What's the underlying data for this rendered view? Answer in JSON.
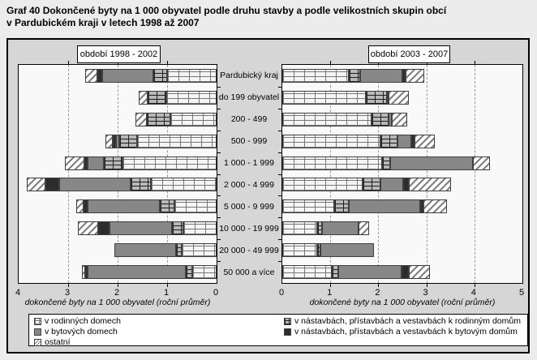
{
  "title_line1": "Graf 40 Dokončené byty na 1 000 obyvatel podle druhu stavby a podle velikostních skupin obcí",
  "title_line2": "v Pardubickém kraji v letech 1998 až 2007",
  "colors": {
    "page_bg": "#ececec",
    "figure_bg": "#d6d6d6",
    "plot_bg": "#f9f9f9",
    "family_houses_fill": "#f5f5f5",
    "family_houses_line": "#777777",
    "family_ext_fill": "#b8b8b8",
    "family_ext_line": "#1f1f1f",
    "apartment_fill": "#878787",
    "apartment_ext_fill": "#2d2d2d",
    "other_fill": "#ffffff",
    "other_line": "#808080"
  },
  "chart_data": {
    "type": "bar",
    "orientation": "horizontal-stacked",
    "grid": "dashed-vertical",
    "categories": [
      "Pardubický kraj",
      "do 199 obyvatel",
      "200 - 499",
      "500 - 999",
      "1 000 - 1 999",
      "2 000 - 4 999",
      "5 000 - 9 999",
      "10 000 - 19 999",
      "20 000 - 49 999",
      "50 000 a více"
    ],
    "panels": [
      {
        "label": "období 1998 - 2002",
        "xlabel": "dokončené byty na 1 000 obyvatel (roční průměr)",
        "xlim": [
          0,
          4
        ],
        "reversed": true,
        "ticks": [
          4,
          3,
          2,
          1,
          0
        ],
        "series": [
          {
            "key": "family-houses",
            "name": "v rodinných domech",
            "values": [
              1.0,
              1.01,
              0.94,
              1.6,
              1.9,
              1.32,
              0.86,
              0.67,
              0.7,
              0.5
            ]
          },
          {
            "key": "family-ext",
            "name": "v nástavbách, přístavbách a vestavbách k rodinným domům",
            "values": [
              0.28,
              0.39,
              0.47,
              0.37,
              0.38,
              0.41,
              0.29,
              0.23,
              0.12,
              0.12
            ]
          },
          {
            "key": "apartment",
            "name": "v bytových domech",
            "values": [
              1.03,
              0,
              0,
              0.07,
              0.32,
              1.45,
              1.46,
              1.27,
              1.24,
              1.98
            ]
          },
          {
            "key": "apartment-ext",
            "name": "v nástavbách, přístavbách a vestavbách k bytovým domům",
            "values": [
              0.1,
              0,
              0,
              0.06,
              0.08,
              0.28,
              0.08,
              0.23,
              0,
              0.06
            ]
          },
          {
            "key": "other",
            "name": "ostatní",
            "values": [
              0.24,
              0.17,
              0.23,
              0.15,
              0.38,
              0.38,
              0.15,
              0.4,
              0,
              0.07
            ]
          }
        ]
      },
      {
        "label": "období 2003 - 2007",
        "xlabel": "dokončené byty na 1 000 obyvatel (roční průměr)",
        "xlim": [
          0,
          5
        ],
        "reversed": false,
        "ticks": [
          0,
          1,
          2,
          3,
          4,
          5
        ],
        "series": [
          {
            "key": "family-houses",
            "name": "v rodinných domech",
            "values": [
              1.38,
              1.74,
              1.85,
              2.05,
              2.07,
              1.68,
              1.08,
              0.72,
              0.73,
              1.03
            ]
          },
          {
            "key": "family-ext",
            "name": "v nástavbách, přístavbách a vestavbách k rodinným domům",
            "values": [
              0.25,
              0.44,
              0.36,
              0.35,
              0.17,
              0.36,
              0.31,
              0.11,
              0.07,
              0.14
            ]
          },
          {
            "key": "apartment",
            "name": "v bytových domech",
            "values": [
              0.87,
              0.04,
              0.07,
              0.28,
              1.73,
              0.47,
              1.48,
              0.76,
              1.11,
              1.32
            ]
          },
          {
            "key": "apartment-ext",
            "name": "v nástavbách, přístavbách a vestavbách k bytovým domům",
            "values": [
              0.07,
              0,
              0,
              0.08,
              0,
              0.13,
              0.07,
              0,
              0,
              0.14
            ]
          },
          {
            "key": "other",
            "name": "ostatní",
            "values": [
              0.38,
              0.42,
              0.33,
              0.41,
              0.36,
              0.87,
              0.49,
              0.21,
              0,
              0.44
            ]
          }
        ]
      }
    ],
    "legend": {
      "position": "bottom",
      "columns": [
        [
          {
            "key": "family-houses",
            "label": "v rodinných domech"
          },
          {
            "key": "apartment",
            "label": "v bytových domech"
          },
          {
            "key": "other",
            "label": "ostatní"
          }
        ],
        [
          {
            "key": "family-ext",
            "label": "v nástavbách, přístavbách a vestavbách k rodinným domům"
          },
          {
            "key": "apartment-ext",
            "label": "v nástavbách, přístavbách a vestavbách k bytovým domům"
          }
        ]
      ]
    }
  }
}
